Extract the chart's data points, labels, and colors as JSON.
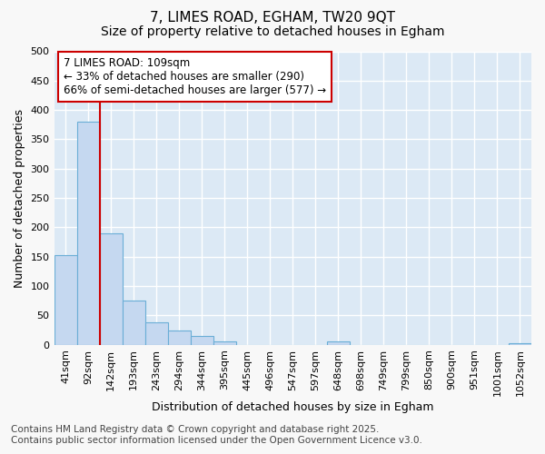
{
  "title": "7, LIMES ROAD, EGHAM, TW20 9QT",
  "subtitle": "Size of property relative to detached houses in Egham",
  "xlabel": "Distribution of detached houses by size in Egham",
  "ylabel": "Number of detached properties",
  "bar_labels": [
    "41sqm",
    "92sqm",
    "142sqm",
    "193sqm",
    "243sqm",
    "294sqm",
    "344sqm",
    "395sqm",
    "445sqm",
    "496sqm",
    "547sqm",
    "597sqm",
    "648sqm",
    "698sqm",
    "749sqm",
    "799sqm",
    "850sqm",
    "900sqm",
    "951sqm",
    "1001sqm",
    "1052sqm"
  ],
  "bar_values": [
    152,
    380,
    190,
    75,
    38,
    25,
    15,
    6,
    0,
    0,
    0,
    0,
    5,
    0,
    0,
    0,
    0,
    0,
    0,
    0,
    2
  ],
  "bar_color": "#c5d8f0",
  "bar_edge_color": "#6aaed6",
  "ylim": [
    0,
    500
  ],
  "yticks": [
    0,
    50,
    100,
    150,
    200,
    250,
    300,
    350,
    400,
    450,
    500
  ],
  "vline_x": 1.5,
  "vline_color": "#cc0000",
  "annotation_text": "7 LIMES ROAD: 109sqm\n← 33% of detached houses are smaller (290)\n66% of semi-detached houses are larger (577) →",
  "annotation_box_color": "#ffffff",
  "annotation_box_edge": "#cc0000",
  "footer_text": "Contains HM Land Registry data © Crown copyright and database right 2025.\nContains public sector information licensed under the Open Government Licence v3.0.",
  "fig_bg_color": "#f8f8f8",
  "plot_bg_color": "#dce9f5",
  "grid_color": "#ffffff",
  "title_fontsize": 11,
  "subtitle_fontsize": 10,
  "axis_label_fontsize": 9,
  "tick_fontsize": 8,
  "annotation_fontsize": 8.5,
  "footer_fontsize": 7.5
}
